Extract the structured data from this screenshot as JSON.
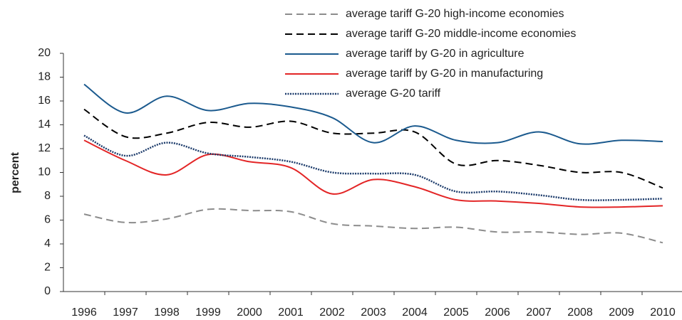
{
  "chart_data": {
    "type": "line",
    "y_label": "percent",
    "categories": [
      "1996",
      "1997",
      "1998",
      "1999",
      "2000",
      "2001",
      "2002",
      "2003",
      "2004",
      "2005",
      "2006",
      "2007",
      "2008",
      "2009",
      "2010"
    ],
    "series": [
      {
        "name": "average tariff G-20 high-income economies",
        "color": "#8c8c8c",
        "style": "dashed",
        "values": [
          6.5,
          5.8,
          6.1,
          6.9,
          6.8,
          6.7,
          5.7,
          5.5,
          5.3,
          5.4,
          5.0,
          5.0,
          4.8,
          4.9,
          4.1
        ]
      },
      {
        "name": "average tariff G-20 middle-income economies",
        "color": "#000000",
        "style": "dashed",
        "values": [
          15.3,
          13.0,
          13.3,
          14.2,
          13.8,
          14.3,
          13.3,
          13.3,
          13.4,
          10.7,
          11.0,
          10.6,
          10.0,
          10.0,
          8.7
        ]
      },
      {
        "name": "average tariff by G-20 in agriculture",
        "color": "#1b5a8e",
        "style": "solid",
        "values": [
          17.4,
          15.0,
          16.4,
          15.2,
          15.8,
          15.5,
          14.6,
          12.5,
          13.9,
          12.7,
          12.5,
          13.4,
          12.4,
          12.7,
          12.6
        ]
      },
      {
        "name": "average tariff by G-20 in manufacturing",
        "color": "#e32526",
        "style": "solid",
        "values": [
          12.7,
          11.0,
          9.8,
          11.5,
          10.9,
          10.4,
          8.2,
          9.4,
          8.8,
          7.7,
          7.6,
          7.4,
          7.1,
          7.1,
          7.2
        ]
      },
      {
        "name": "average G-20 tariff",
        "color": "#1c3b6b",
        "style": "dotted",
        "values": [
          13.1,
          11.4,
          12.5,
          11.6,
          11.3,
          10.9,
          10.0,
          9.9,
          9.8,
          8.4,
          8.4,
          8.1,
          7.7,
          7.7,
          7.8
        ]
      }
    ],
    "ylim": [
      0,
      20
    ],
    "yticks": [
      0,
      2,
      4,
      6,
      8,
      10,
      12,
      14,
      16,
      18,
      20
    ],
    "grid": false
  }
}
